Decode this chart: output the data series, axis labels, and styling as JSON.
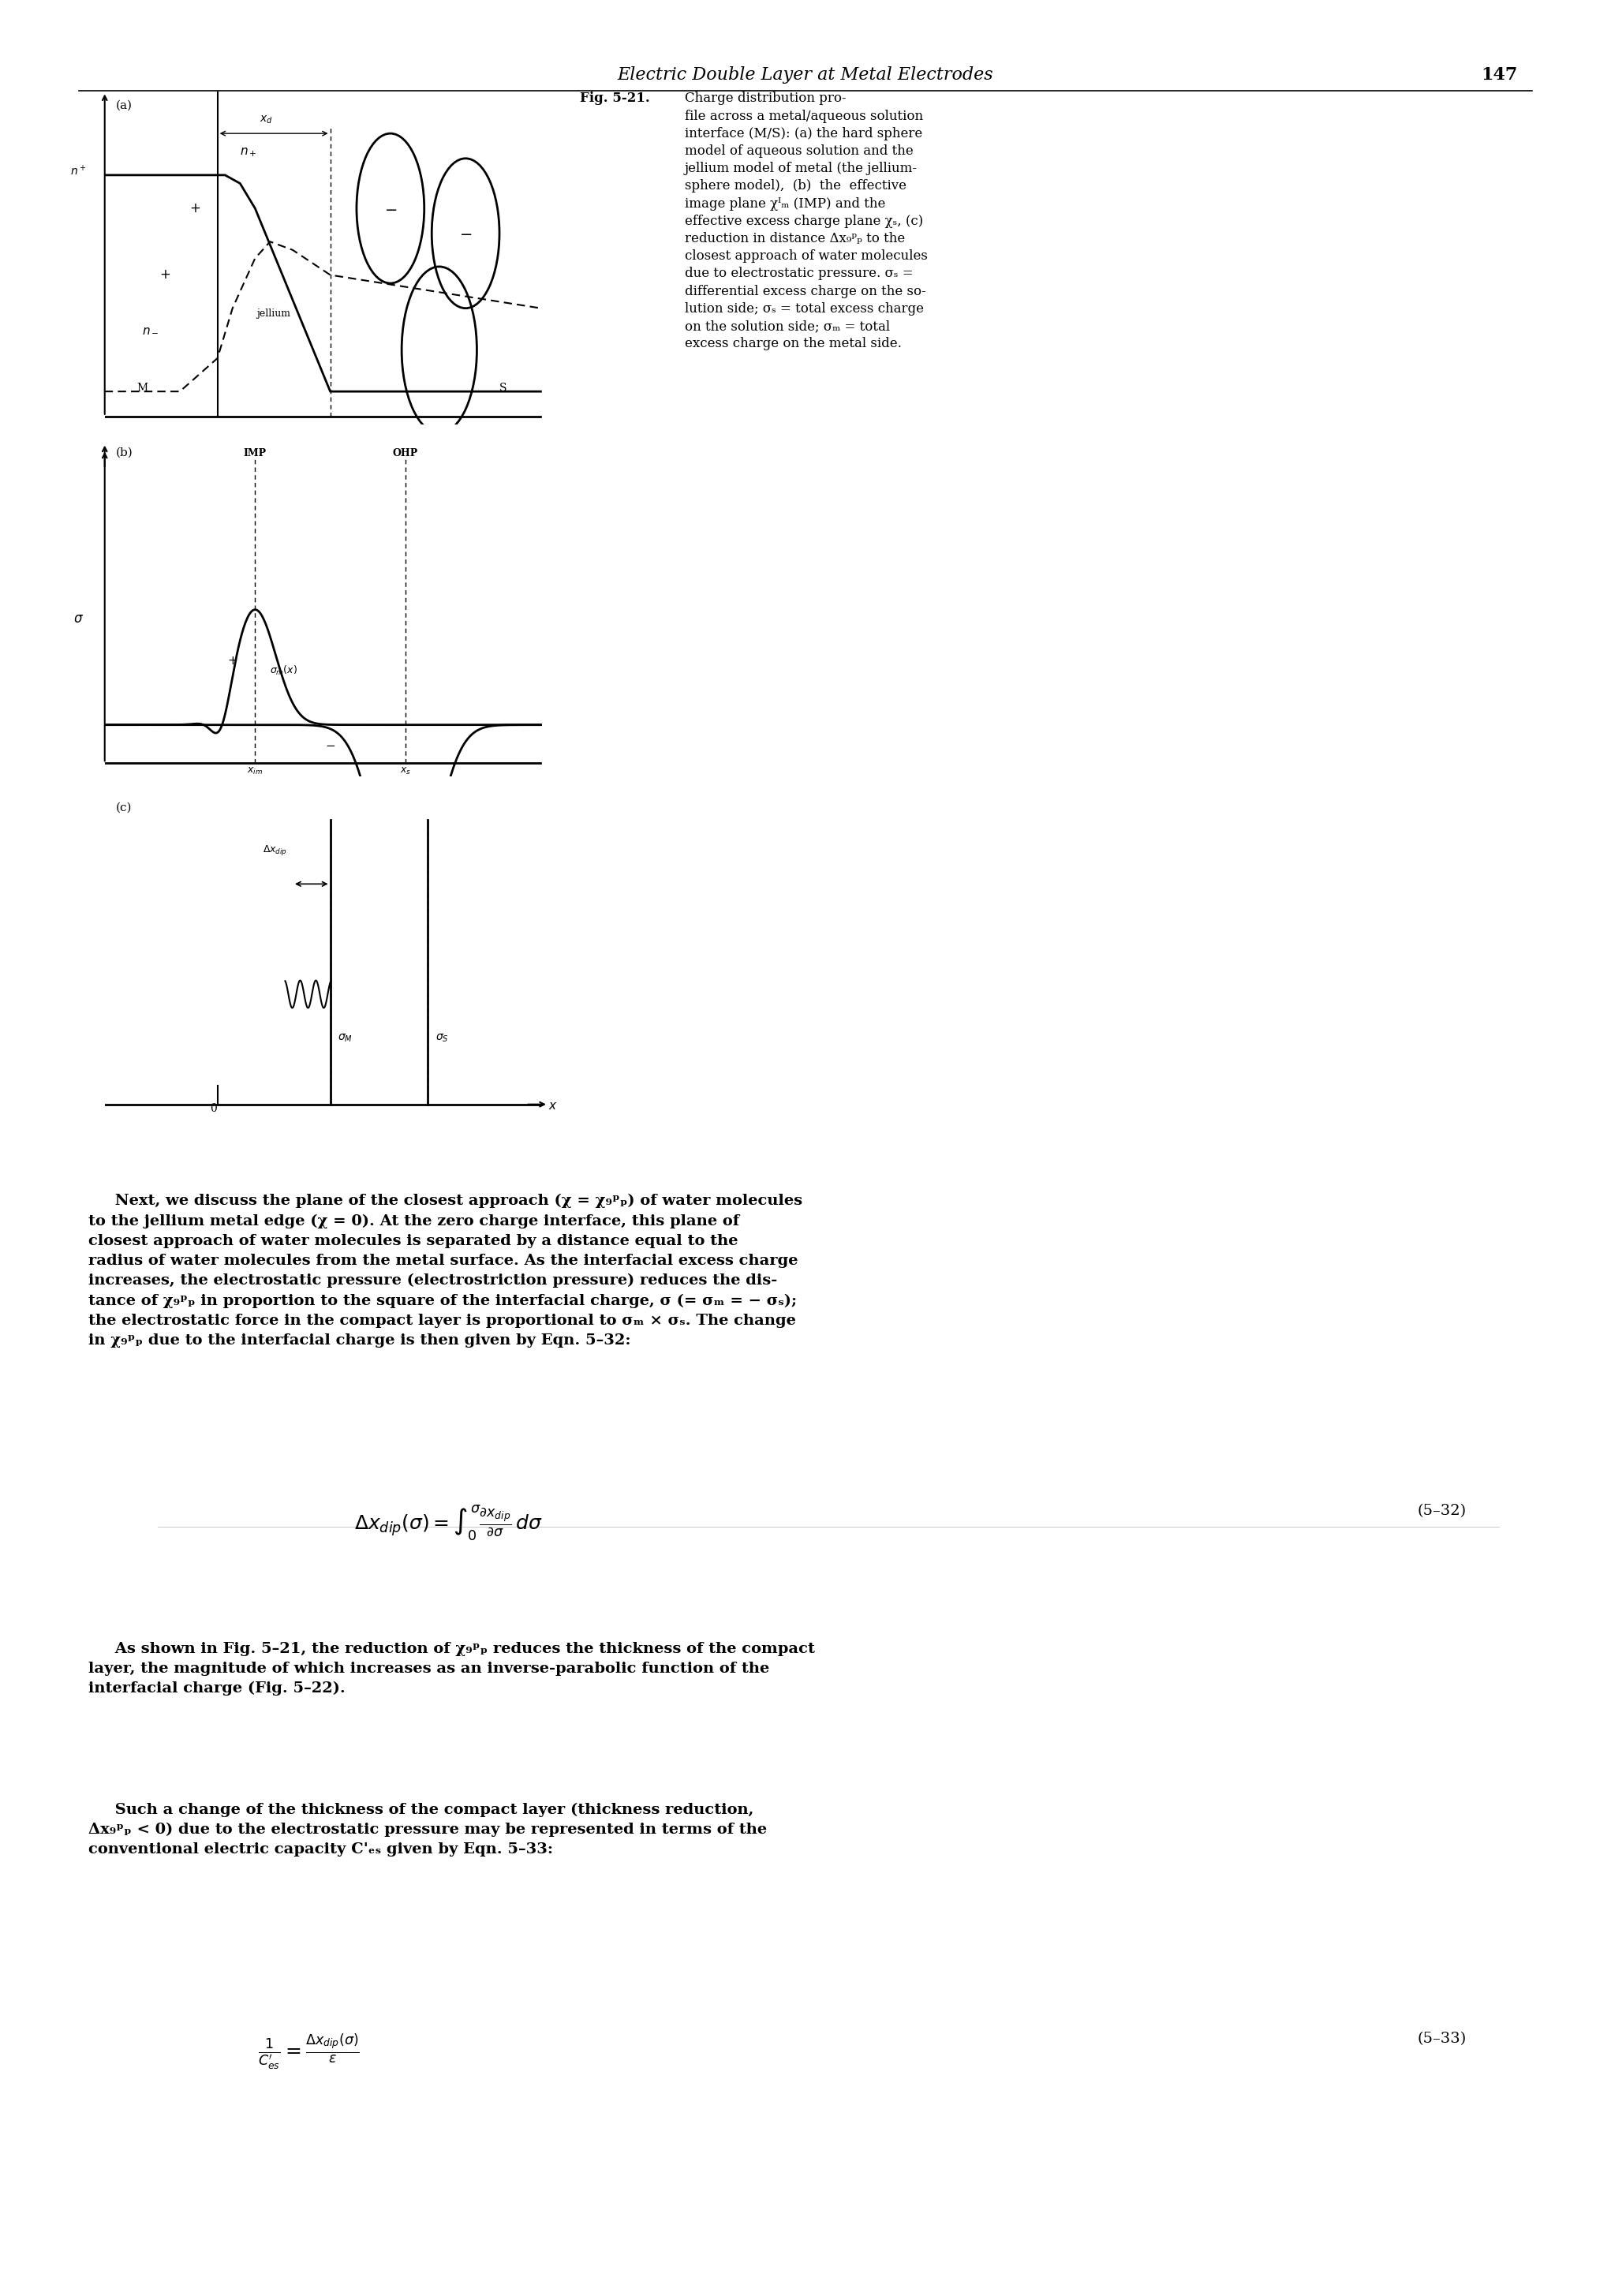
{
  "page_header_italic": "Electric Double Layer at Metal Electrodes",
  "page_number": "147",
  "fig_caption_bold": "Fig. 5-21.",
  "fig_caption_text": " Charge distribution profile across a metal/aqueous solution interface (M/S): (a) the hard sphere model of aqueous solution and the jellium model of metal (the jellium-sphere model), (b) the effective image plane x₁ₘ (IMP) and the effective excess charge plane xₛ, (c) reduction in distance Δx₉ᵖₚ to the closest approach of water molecules due to electrostatic pressure. σₛ = differential excess charge on the solution side; σₛ = total excess charge on the solution side; σₘ = total excess charge on the metal side.",
  "text_paragraph1": "Next, we discuss the plane of the closest approach (x = x₉ᵖₚ) of water molecules to the jellium metal edge (x = 0). At the zero charge interface, this plane of closest approach of water molecules is separated by a distance equal to the radius of water molecules from the metal surface. As the interfacial excess charge increases, the electrostatic pressure (electrostriction pressure) reduces the distance of x₉ᵖₚ in proportion to the square of the interfacial charge, σ (= σₘ = − σₛ); the electrostatic force in the compact layer is proportional to σₘ × σₛ. The change in x₉ᵖₚ due to the interfacial charge is then given by Eqn. 5–32:",
  "equation1_lhs": "Δx₉ᵖₚ(σ) = ",
  "equation1_integral": "∫",
  "equation1_rhs": "∂x₉ᵖₚ / ∂σ  dσ",
  "equation1_label": "(5–32)",
  "text_paragraph2": "As shown in Fig. 5–21, the reduction of x₉ᵖₚ reduces the thickness of the compact layer, the magnitude of which increases as an inverse-parabolic function of the interfacial charge (Fig. 5–22).",
  "text_paragraph3": "Such a change of the thickness of the compact layer (thickness reduction, Δx₉ᵖₚ < 0) due to the electrostatic pressure may be represented in terms of the conventional electric capacity C'ₑₛ given by Eqn. 5–33:",
  "equation2_lhs": "1/C'ₑₛ = ",
  "equation2_rhs": "Δx₉ᵖₚ(σ) / ε",
  "equation2_label": "(5–33)",
  "bg_color": "#ffffff",
  "text_color": "#000000"
}
